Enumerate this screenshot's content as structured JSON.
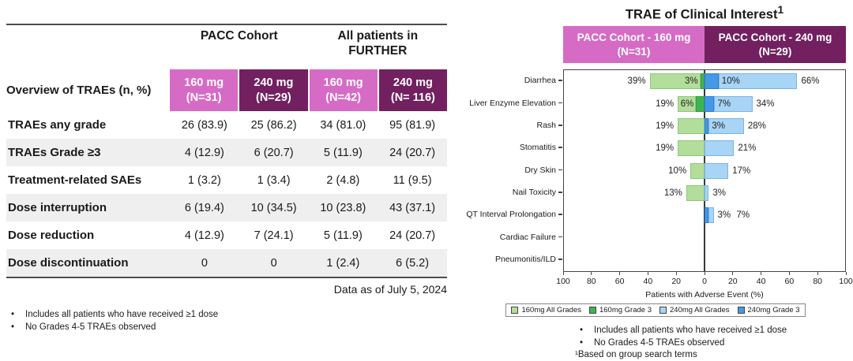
{
  "left_table": {
    "group_headers": [
      "PACC Cohort",
      "All patients in\nFURTHER"
    ],
    "corner_label": "Overview of TRAEs (n, %)",
    "columns": [
      {
        "label": "160 mg\n(N=31)",
        "color": "#d66bc5"
      },
      {
        "label": "240 mg\n(N=29)",
        "color": "#72205f"
      },
      {
        "label": "160 mg\n(N=42)",
        "color": "#d66bc5"
      },
      {
        "label": "240 mg\n(N= 116)",
        "color": "#72205f"
      }
    ],
    "rows": [
      {
        "label": "TRAEs any grade",
        "values": [
          "26 (83.9)",
          "25 (86.2)",
          "34 (81.0)",
          "95 (81.9)"
        ]
      },
      {
        "label": "TRAEs Grade ≥3",
        "values": [
          "4 (12.9)",
          "6 (20.7)",
          "5 (11.9)",
          "24 (20.7)"
        ]
      },
      {
        "label": "Treatment-related SAEs",
        "values": [
          "1 (3.2)",
          "1 (3.4)",
          "2 (4.8)",
          "11 (9.5)"
        ]
      },
      {
        "label": "Dose interruption",
        "values": [
          "6 (19.4)",
          "10 (34.5)",
          "10 (23.8)",
          "43 (37.1)"
        ]
      },
      {
        "label": "Dose reduction",
        "values": [
          "4 (12.9)",
          "7 (24.1)",
          "5 (11.9)",
          "24 (20.7)"
        ]
      },
      {
        "label": "Dose discontinuation",
        "values": [
          "0",
          "0",
          "1 (2.4)",
          "6 (5.2)"
        ]
      }
    ],
    "data_note": "Data as of July 5, 2024",
    "footnotes": [
      "Includes all patients who have received ≥1 dose",
      "No Grades 4-5 TRAEs observed"
    ]
  },
  "chart": {
    "title": "TRAE of Clinical Interest",
    "title_sup": "1",
    "cohort_headers": [
      {
        "label": "PACC Cohort - 160 mg\n(N=31)",
        "color": "#d66bc5"
      },
      {
        "label": "PACC Cohort - 240 mg\n(N=29)",
        "color": "#72205f"
      }
    ],
    "footnotes": [
      "Includes all patients who have received ≥1 dose",
      "No Grades 4-5 TRAEs observed"
    ],
    "footnote_sup": "¹Based on group search terms"
  },
  "chart_data": {
    "type": "bar",
    "orientation": "horizontal-diverging",
    "title": "TRAE of Clinical Interest¹",
    "xlabel": "Patients with Adverse Event (%)",
    "xlim": [
      -100,
      100
    ],
    "tick_step": 20,
    "tick_labels": [
      "100",
      "80",
      "60",
      "40",
      "20",
      "0",
      "20",
      "40",
      "60",
      "80",
      "100"
    ],
    "categories": [
      "Diarrhea",
      "Liver Enzyme Elevation",
      "Rash",
      "Stomatitis",
      "Dry Skin",
      "Nail Toxicity",
      "QT Interval Prolongation",
      "Cardiac Failure",
      "Pneumonitis/ILD"
    ],
    "series": [
      {
        "name": "160mg All Grades",
        "side": "left",
        "color": "#b3dd9b",
        "border": "#8cc977",
        "values": [
          39,
          19,
          19,
          19,
          10,
          13,
          0,
          0,
          0
        ]
      },
      {
        "name": "160mg Grade 3",
        "side": "left",
        "color": "#3eb356",
        "border": "#2f9e46",
        "values": [
          3,
          6,
          0,
          0,
          0,
          0,
          0,
          0,
          0
        ]
      },
      {
        "name": "240mg All Grades",
        "side": "right",
        "color": "#a8d4f6",
        "border": "#7ab4e8",
        "values": [
          66,
          34,
          28,
          21,
          17,
          3,
          7,
          0,
          0
        ]
      },
      {
        "name": "240mg Grade 3",
        "side": "right",
        "color": "#4598e6",
        "border": "#2f7fd0",
        "values": [
          10,
          7,
          3,
          0,
          0,
          0,
          3,
          0,
          0
        ]
      }
    ],
    "legend_position": "bottom",
    "grid": false
  }
}
